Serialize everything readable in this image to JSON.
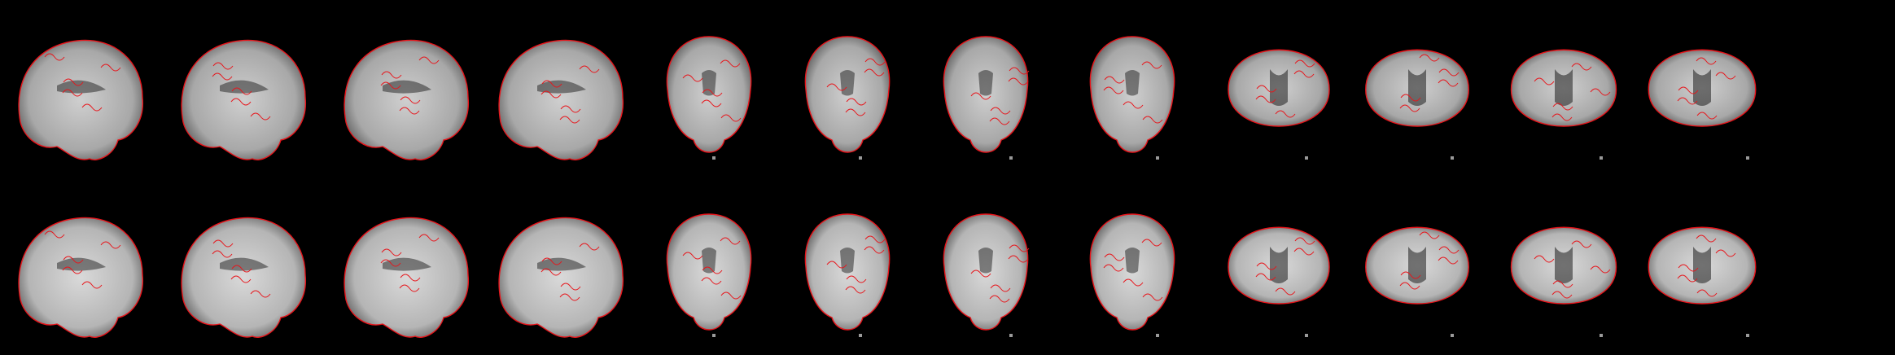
{
  "figure": {
    "rows": [
      {
        "id": "functional",
        "slices": [
          {
            "view": "sagittal"
          },
          {
            "view": "sagittal"
          },
          {
            "view": "sagittal"
          },
          {
            "view": "sagittal"
          },
          {
            "view": "coronal"
          },
          {
            "view": "coronal"
          },
          {
            "view": "coronal"
          },
          {
            "view": "coronal"
          },
          {
            "view": "axial"
          },
          {
            "view": "axial"
          },
          {
            "view": "axial"
          },
          {
            "view": "axial"
          }
        ]
      },
      {
        "id": "template",
        "slices": [
          {
            "view": "sagittal"
          },
          {
            "view": "sagittal"
          },
          {
            "view": "sagittal"
          },
          {
            "view": "sagittal"
          },
          {
            "view": "coronal"
          },
          {
            "view": "coronal"
          },
          {
            "view": "coronal"
          },
          {
            "view": "coronal"
          },
          {
            "view": "axial"
          },
          {
            "view": "axial"
          },
          {
            "view": "axial"
          },
          {
            "view": "axial"
          }
        ]
      }
    ]
  },
  "colors": {
    "background": "#000000",
    "contour": "#e8141a",
    "tissue_light": "#e6e6e6",
    "tissue_mid": "#8c8c8c",
    "ventricle": "#1e1e1e"
  }
}
